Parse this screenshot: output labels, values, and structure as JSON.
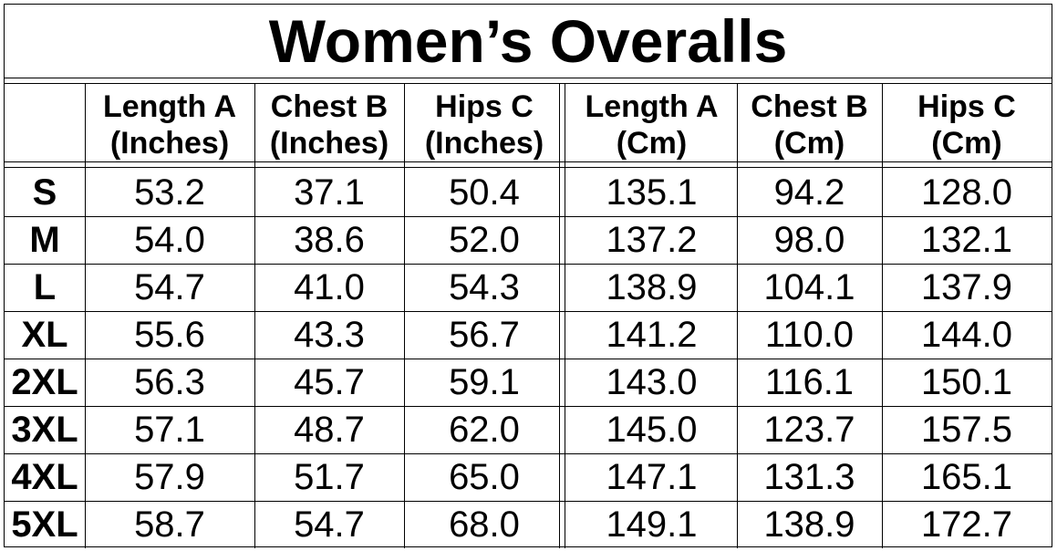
{
  "title": "Women’s Overalls",
  "headers": [
    {
      "line1": "",
      "line2": ""
    },
    {
      "line1": "Length A",
      "line2": "(Inches)"
    },
    {
      "line1": "Chest B",
      "line2": "(Inches)"
    },
    {
      "line1": "Hips C",
      "line2": "(Inches)"
    },
    {
      "line1": "Length A",
      "line2": "(Cm)"
    },
    {
      "line1": "Chest B",
      "line2": "(Cm)"
    },
    {
      "line1": "Hips C",
      "line2": "(Cm)"
    }
  ],
  "rows": [
    {
      "size": "S",
      "values": [
        "53.2",
        "37.1",
        "50.4",
        "135.1",
        "94.2",
        "128.0"
      ]
    },
    {
      "size": "M",
      "values": [
        "54.0",
        "38.6",
        "52.0",
        "137.2",
        "98.0",
        "132.1"
      ]
    },
    {
      "size": "L",
      "values": [
        "54.7",
        "41.0",
        "54.3",
        "138.9",
        "104.1",
        "137.9"
      ]
    },
    {
      "size": "XL",
      "values": [
        "55.6",
        "43.3",
        "56.7",
        "141.2",
        "110.0",
        "144.0"
      ]
    },
    {
      "size": "2XL",
      "values": [
        "56.3",
        "45.7",
        "59.1",
        "143.0",
        "116.1",
        "150.1"
      ]
    },
    {
      "size": "3XL",
      "values": [
        "57.1",
        "48.7",
        "62.0",
        "145.0",
        "123.7",
        "157.5"
      ]
    },
    {
      "size": "4XL",
      "values": [
        "57.9",
        "51.7",
        "65.0",
        "147.1",
        "131.3",
        "165.1"
      ]
    },
    {
      "size": "5XL",
      "values": [
        "58.7",
        "54.7",
        "68.0",
        "149.1",
        "138.9",
        "172.7"
      ]
    }
  ]
}
